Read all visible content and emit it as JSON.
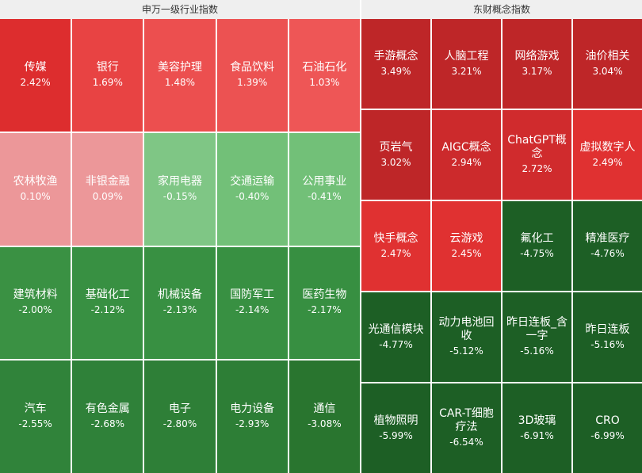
{
  "panels": {
    "left": {
      "title": "申万一级行业指数"
    },
    "right": {
      "title": "东财概念指数"
    }
  },
  "chart_data": [
    {
      "type": "heatmap",
      "title": "申万一级行业指数",
      "layout": {
        "columns": 5,
        "rows": 4
      },
      "cells": [
        {
          "name": "传媒",
          "value": 2.42,
          "label": "2.42%",
          "color": "#dd2d2e"
        },
        {
          "name": "银行",
          "value": 1.69,
          "label": "1.69%",
          "color": "#e84343"
        },
        {
          "name": "美容护理",
          "value": 1.48,
          "label": "1.48%",
          "color": "#ec4f4f"
        },
        {
          "name": "食品饮料",
          "value": 1.39,
          "label": "1.39%",
          "color": "#ec5252"
        },
        {
          "name": "石油石化",
          "value": 1.03,
          "label": "1.03%",
          "color": "#ee5656"
        },
        {
          "name": "农林牧渔",
          "value": 0.1,
          "label": "0.10%",
          "color": "#ec9799"
        },
        {
          "name": "非银金融",
          "value": 0.09,
          "label": "0.09%",
          "color": "#ec9799"
        },
        {
          "name": "家用电器",
          "value": -0.15,
          "label": "-0.15%",
          "color": "#7fc685"
        },
        {
          "name": "交通运输",
          "value": -0.4,
          "label": "-0.40%",
          "color": "#72c078"
        },
        {
          "name": "公用事业",
          "value": -0.41,
          "label": "-0.41%",
          "color": "#72c078"
        },
        {
          "name": "建筑材料",
          "value": -2.0,
          "label": "-2.00%",
          "color": "#3a9143"
        },
        {
          "name": "基础化工",
          "value": -2.12,
          "label": "-2.12%",
          "color": "#389042"
        },
        {
          "name": "机械设备",
          "value": -2.13,
          "label": "-2.13%",
          "color": "#389042"
        },
        {
          "name": "国防军工",
          "value": -2.14,
          "label": "-2.14%",
          "color": "#389042"
        },
        {
          "name": "医药生物",
          "value": -2.17,
          "label": "-2.17%",
          "color": "#378f41"
        },
        {
          "name": "汽车",
          "value": -2.55,
          "label": "-2.55%",
          "color": "#30833a"
        },
        {
          "name": "有色金属",
          "value": -2.68,
          "label": "-2.68%",
          "color": "#2f8139"
        },
        {
          "name": "电子",
          "value": -2.8,
          "label": "-2.80%",
          "color": "#2e7f37"
        },
        {
          "name": "电力设备",
          "value": -2.93,
          "label": "-2.93%",
          "color": "#2d7e36"
        },
        {
          "name": "通信",
          "value": -3.08,
          "label": "-3.08%",
          "color": "#29752f"
        }
      ]
    },
    {
      "type": "heatmap",
      "title": "东财概念指数",
      "layout": {
        "columns": 4,
        "rows": 5
      },
      "cells": [
        {
          "name": "手游概念",
          "value": 3.49,
          "label": "3.49%",
          "color": "#be2628"
        },
        {
          "name": "人脑工程",
          "value": 3.21,
          "label": "3.21%",
          "color": "#be2628"
        },
        {
          "name": "网络游戏",
          "value": 3.17,
          "label": "3.17%",
          "color": "#be2628"
        },
        {
          "name": "油价相关",
          "value": 3.04,
          "label": "3.04%",
          "color": "#be2628"
        },
        {
          "name": "页岩气",
          "value": 3.02,
          "label": "3.02%",
          "color": "#be2628"
        },
        {
          "name": "AIGC概念",
          "value": 2.94,
          "label": "2.94%",
          "color": "#cc2a2c"
        },
        {
          "name": "ChatGPT概念",
          "value": 2.72,
          "label": "2.72%",
          "color": "#d02b2d"
        },
        {
          "name": "虚拟数字人",
          "value": 2.49,
          "label": "2.49%",
          "color": "#e03131"
        },
        {
          "name": "快手概念",
          "value": 2.47,
          "label": "2.47%",
          "color": "#e03131"
        },
        {
          "name": "云游戏",
          "value": 2.45,
          "label": "2.45%",
          "color": "#e03131"
        },
        {
          "name": "氟化工",
          "value": -4.75,
          "label": "-4.75%",
          "color": "#1d5f25"
        },
        {
          "name": "精准医疗",
          "value": -4.76,
          "label": "-4.76%",
          "color": "#1d5f25"
        },
        {
          "name": "光通信模块",
          "value": -4.77,
          "label": "-4.77%",
          "color": "#1d5f25"
        },
        {
          "name": "动力电池回收",
          "value": -5.12,
          "label": "-5.12%",
          "color": "#1d5f25"
        },
        {
          "name": "昨日连板_含一字",
          "value": -5.16,
          "label": "-5.16%",
          "color": "#1d5f25"
        },
        {
          "name": "昨日连板",
          "value": -5.16,
          "label": "-5.16%",
          "color": "#1d5f25"
        },
        {
          "name": "植物照明",
          "value": -5.99,
          "label": "-5.99%",
          "color": "#1d5f25"
        },
        {
          "name": "CAR-T细胞疗法",
          "value": -6.54,
          "label": "-6.54%",
          "color": "#1d5f25"
        },
        {
          "name": "3D玻璃",
          "value": -6.91,
          "label": "-6.91%",
          "color": "#1d5f25"
        },
        {
          "name": "CRO",
          "value": -6.99,
          "label": "-6.99%",
          "color": "#1d5f25"
        }
      ]
    }
  ]
}
